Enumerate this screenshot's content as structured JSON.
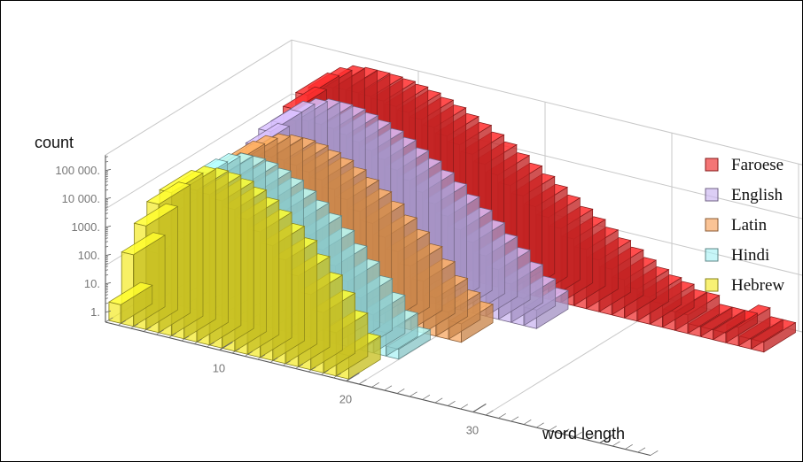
{
  "chart_data": {
    "type": "bar",
    "subtype": "3d-histogram",
    "title": "",
    "xlabel": "word length",
    "ylabel": "count",
    "yscale": "log",
    "ylim": [
      1,
      300000
    ],
    "xlim": [
      1,
      40
    ],
    "x_ticks": [
      "10",
      "20",
      "30"
    ],
    "y_ticks": [
      "1.",
      "10.",
      "100.",
      "1000.",
      "10 000.",
      "100 000."
    ],
    "legend": {
      "position": "right"
    },
    "grid": true,
    "series": [
      {
        "name": "Faroese",
        "color": "#ee2b2b",
        "x_start": 1,
        "values": [
          80,
          2000,
          15000,
          60000,
          120000,
          180000,
          200000,
          200000,
          190000,
          170000,
          140000,
          110000,
          80000,
          55000,
          35000,
          22000,
          13000,
          7500,
          4000,
          2200,
          1200,
          650,
          350,
          180,
          100,
          55,
          30,
          18,
          10,
          6,
          4,
          3,
          2,
          2,
          1,
          1,
          1,
          2,
          1,
          1
        ]
      },
      {
        "name": "English",
        "color": "#c9b3f0",
        "x_start": 1,
        "values": [
          100,
          800,
          5000,
          20000,
          50000,
          80000,
          100000,
          100000,
          90000,
          70000,
          50000,
          32000,
          20000,
          11000,
          6000,
          3000,
          1500,
          700,
          300,
          140,
          60,
          25,
          10,
          4,
          2
        ]
      },
      {
        "name": "Latin",
        "color": "#f7a35c",
        "x_start": 1,
        "values": [
          30,
          800,
          3000,
          10000,
          20000,
          30000,
          35000,
          35000,
          30000,
          22000,
          15000,
          9000,
          5000,
          2500,
          1200,
          500,
          200,
          80,
          30,
          10,
          4,
          2
        ]
      },
      {
        "name": "Hindi",
        "color": "#a9f1f4",
        "x_start": 1,
        "values": [
          20,
          600,
          4000,
          15000,
          30000,
          40000,
          40000,
          35000,
          25000,
          15000,
          8000,
          4000,
          1800,
          700,
          250,
          90,
          30,
          10,
          3,
          1
        ]
      },
      {
        "name": "Hebrew",
        "color": "#f4ea2a",
        "x_start": 1,
        "values": [
          2,
          150,
          2000,
          15000,
          50000,
          90000,
          100000,
          90000,
          70000,
          45000,
          25000,
          12000,
          5000,
          2000,
          700,
          200,
          60,
          15,
          3
        ]
      }
    ]
  }
}
